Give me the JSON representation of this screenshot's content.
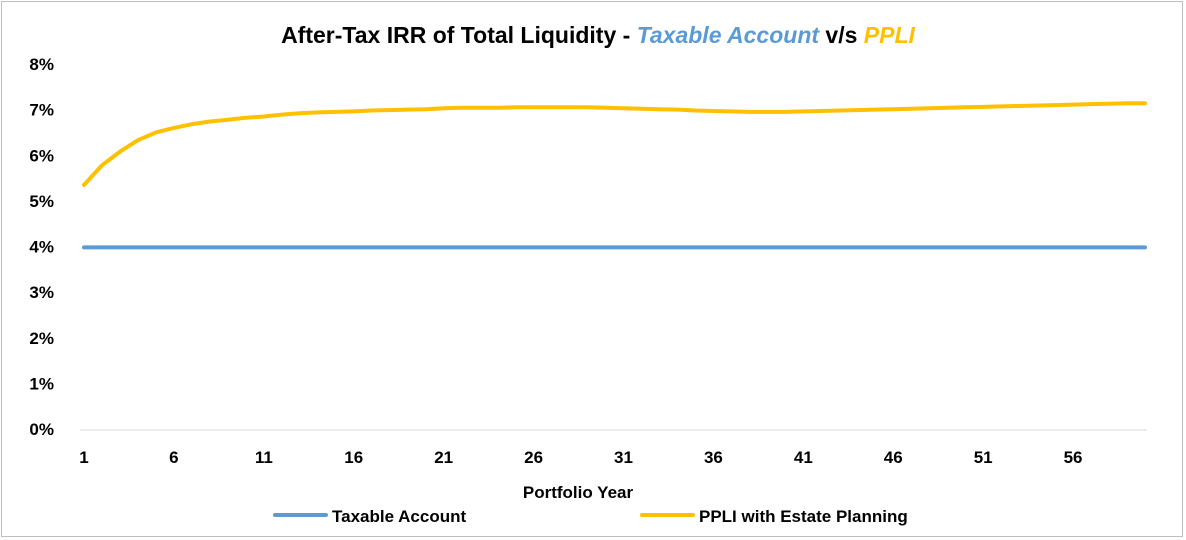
{
  "chart_data": {
    "type": "line",
    "title": {
      "part1": "After-Tax IRR of Total Liquidity - ",
      "part2": "Taxable Account",
      "part3": " v/s ",
      "part4": "PPLI"
    },
    "title_colors": {
      "part1": "#000000",
      "part2": "#5b9bd5",
      "part3": "#000000",
      "part4": "#ffc000"
    },
    "xlabel": "Portfolio Year",
    "ylabel": "",
    "x_tick_labels": [
      "1",
      "6",
      "11",
      "16",
      "21",
      "26",
      "31",
      "36",
      "41",
      "46",
      "51",
      "56"
    ],
    "y_tick_labels": [
      "0%",
      "1%",
      "2%",
      "3%",
      "4%",
      "5%",
      "6%",
      "7%",
      "8%"
    ],
    "ylim": [
      0,
      8
    ],
    "x_range": [
      1,
      60
    ],
    "grid": false,
    "legend_position": "bottom",
    "series": [
      {
        "name": "Taxable Account",
        "color": "#5b9bd5",
        "x": [
          1,
          60
        ],
        "values": [
          3.98,
          3.98
        ]
      },
      {
        "name": "PPLI with Estate Planning",
        "color": "#ffc000",
        "x": [
          1,
          2,
          3,
          4,
          5,
          6,
          7,
          8,
          9,
          10,
          11,
          12,
          13,
          14,
          15,
          16,
          17,
          18,
          19,
          20,
          21,
          22,
          23,
          24,
          25,
          26,
          27,
          28,
          29,
          30,
          31,
          32,
          33,
          34,
          35,
          36,
          37,
          38,
          39,
          40,
          41,
          42,
          43,
          44,
          45,
          46,
          47,
          48,
          49,
          50,
          51,
          52,
          53,
          54,
          55,
          56,
          57,
          58,
          59,
          60
        ],
        "values": [
          5.35,
          5.78,
          6.08,
          6.33,
          6.5,
          6.6,
          6.68,
          6.74,
          6.78,
          6.82,
          6.85,
          6.89,
          6.92,
          6.94,
          6.95,
          6.96,
          6.98,
          6.99,
          7.0,
          7.01,
          7.03,
          7.04,
          7.04,
          7.04,
          7.05,
          7.05,
          7.05,
          7.05,
          7.05,
          7.04,
          7.03,
          7.02,
          7.01,
          7.0,
          6.98,
          6.97,
          6.96,
          6.95,
          6.95,
          6.95,
          6.96,
          6.97,
          6.98,
          6.99,
          7.0,
          7.01,
          7.02,
          7.03,
          7.04,
          7.05,
          7.06,
          7.07,
          7.08,
          7.09,
          7.1,
          7.11,
          7.12,
          7.13,
          7.14,
          7.14
        ]
      }
    ]
  }
}
